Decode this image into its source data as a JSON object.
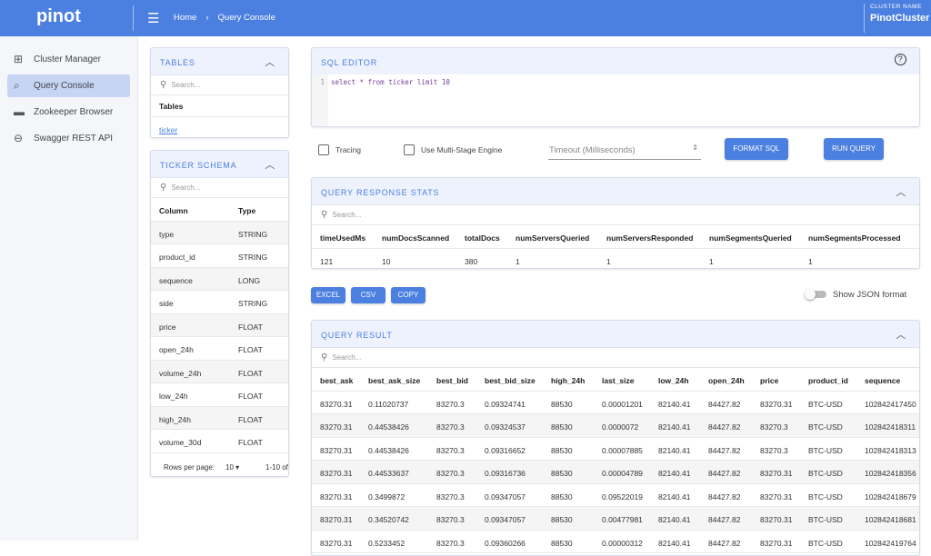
{
  "header": {
    "logo": "pinot",
    "breadcrumb": [
      "Home",
      "Query Console"
    ],
    "cluster_label": "CLUSTER NAME",
    "cluster_name": "PinotCluster"
  },
  "sidebar": {
    "items": [
      {
        "label": "Cluster Manager",
        "icon": "sitemap-icon"
      },
      {
        "label": "Query Console",
        "icon": "query-icon",
        "active": true
      },
      {
        "label": "Zookeeper Browser",
        "icon": "zookeeper-icon"
      },
      {
        "label": "Swagger REST API",
        "icon": "api-icon"
      }
    ]
  },
  "tables": {
    "title": "TABLES",
    "search_placeholder": "Search...",
    "header": "Tables",
    "items": [
      "ticker"
    ]
  },
  "schema": {
    "title": "TICKER SCHEMA",
    "search_placeholder": "Search...",
    "headers": [
      "Column",
      "Type"
    ],
    "rows": [
      [
        "type",
        "STRING"
      ],
      [
        "product_id",
        "STRING"
      ],
      [
        "sequence",
        "LONG"
      ],
      [
        "side",
        "STRING"
      ],
      [
        "price",
        "FLOAT"
      ],
      [
        "open_24h",
        "FLOAT"
      ],
      [
        "volume_24h",
        "FLOAT"
      ],
      [
        "low_24h",
        "FLOAT"
      ],
      [
        "high_24h",
        "FLOAT"
      ],
      [
        "volume_30d",
        "FLOAT"
      ]
    ],
    "rows_per_page_label": "Rows per page:",
    "rows_per_page": "10",
    "range": "1-10 of"
  },
  "editor": {
    "title": "SQL EDITOR",
    "line": "1",
    "query": "select * from ticker limit 10"
  },
  "options": {
    "tracing": "Tracing",
    "multistage": "Use Multi-Stage Engine",
    "timeout_placeholder": "Timeout (Milliseconds)",
    "format_btn": "FORMAT SQL",
    "run_btn": "RUN QUERY"
  },
  "stats": {
    "title": "QUERY RESPONSE STATS",
    "search_placeholder": "Search...",
    "headers": [
      "timeUsedMs",
      "numDocsScanned",
      "totalDocs",
      "numServersQueried",
      "numServersResponded",
      "numSegmentsQueried",
      "numSegmentsProcessed"
    ],
    "values": [
      "121",
      "10",
      "380",
      "1",
      "1",
      "1",
      "1"
    ]
  },
  "export": {
    "excel": "EXCEL",
    "csv": "CSV",
    "copy": "COPY",
    "json_toggle": "Show JSON format"
  },
  "result": {
    "title": "QUERY RESULT",
    "search_placeholder": "Search...",
    "headers": [
      "best_ask",
      "best_ask_size",
      "best_bid",
      "best_bid_size",
      "high_24h",
      "last_size",
      "low_24h",
      "open_24h",
      "price",
      "product_id",
      "sequence"
    ],
    "rows": [
      [
        "83270.31",
        "0.11020737",
        "83270.3",
        "0.09324741",
        "88530",
        "0.00001201",
        "82140.41",
        "84427.82",
        "83270.31",
        "BTC-USD",
        "102842417450"
      ],
      [
        "83270.31",
        "0.44538426",
        "83270.3",
        "0.09324537",
        "88530",
        "0.0000072",
        "82140.41",
        "84427.82",
        "83270.3",
        "BTC-USD",
        "102842418311"
      ],
      [
        "83270.31",
        "0.44538426",
        "83270.3",
        "0.09316652",
        "88530",
        "0.00007885",
        "82140.41",
        "84427.82",
        "83270.3",
        "BTC-USD",
        "102842418313"
      ],
      [
        "83270.31",
        "0.44533637",
        "83270.3",
        "0.09316736",
        "88530",
        "0.00004789",
        "82140.41",
        "84427.82",
        "83270.31",
        "BTC-USD",
        "102842418356"
      ],
      [
        "83270.31",
        "0.3499872",
        "83270.3",
        "0.09347057",
        "88530",
        "0.09522019",
        "82140.41",
        "84427.82",
        "83270.31",
        "BTC-USD",
        "102842418679"
      ],
      [
        "83270.31",
        "0.34520742",
        "83270.3",
        "0.09347057",
        "88530",
        "0.00477981",
        "82140.41",
        "84427.82",
        "83270.31",
        "BTC-USD",
        "102842418681"
      ],
      [
        "83270.31",
        "0.5233452",
        "83270.3",
        "0.09360266",
        "88530",
        "0.00000312",
        "82140.41",
        "84427.82",
        "83270.31",
        "BTC-USD",
        "102842419764"
      ]
    ]
  },
  "colors": {
    "accent": "#4b7fe0",
    "active_nav": "#c5d5f3"
  }
}
